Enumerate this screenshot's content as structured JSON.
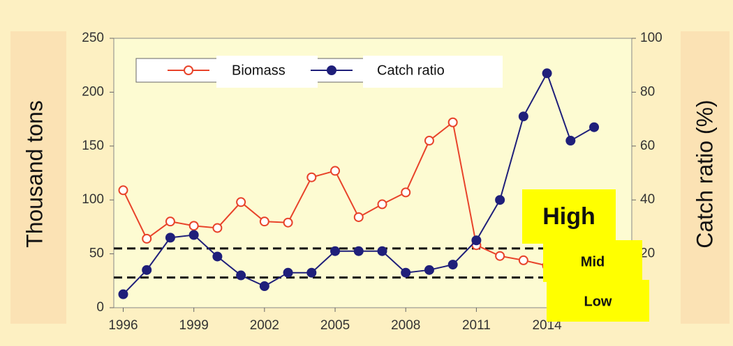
{
  "chart_data": {
    "type": "line",
    "x": [
      1996,
      1997,
      1998,
      1999,
      2000,
      2001,
      2002,
      2003,
      2004,
      2005,
      2006,
      2007,
      2008,
      2009,
      2010,
      2011,
      2012,
      2013,
      2014,
      2015,
      2016
    ],
    "xlim": [
      1995.6,
      2017.6
    ],
    "xticks": [
      1996,
      1999,
      2002,
      2005,
      2008,
      2011,
      2014
    ],
    "ylim": [
      0,
      250
    ],
    "yticks": [
      0,
      50,
      100,
      150,
      200,
      250
    ],
    "y2lim": [
      0,
      100
    ],
    "y2ticks": [
      0,
      20,
      40,
      60,
      80,
      100
    ],
    "ylabel": "Thousand tons",
    "y2label": "Catch ratio (%)",
    "series": [
      {
        "name": "Biomass",
        "color": "#e8432a",
        "values": [
          109,
          64,
          80,
          76,
          74,
          98,
          80,
          79,
          121,
          127,
          84,
          96,
          107,
          155,
          172,
          58,
          48,
          44,
          39,
          null,
          null
        ]
      },
      {
        "name": "Catch ratio",
        "color": "#1f1f7a",
        "axis": "y2",
        "values": [
          5,
          14,
          26,
          27,
          19,
          12,
          8,
          13,
          13,
          21,
          21,
          21,
          13,
          14,
          16,
          25,
          40,
          71,
          87,
          62,
          67
        ]
      }
    ],
    "threshold_lines": [
      55,
      28
    ],
    "zones": [
      "High",
      "Mid",
      "Low"
    ]
  }
}
